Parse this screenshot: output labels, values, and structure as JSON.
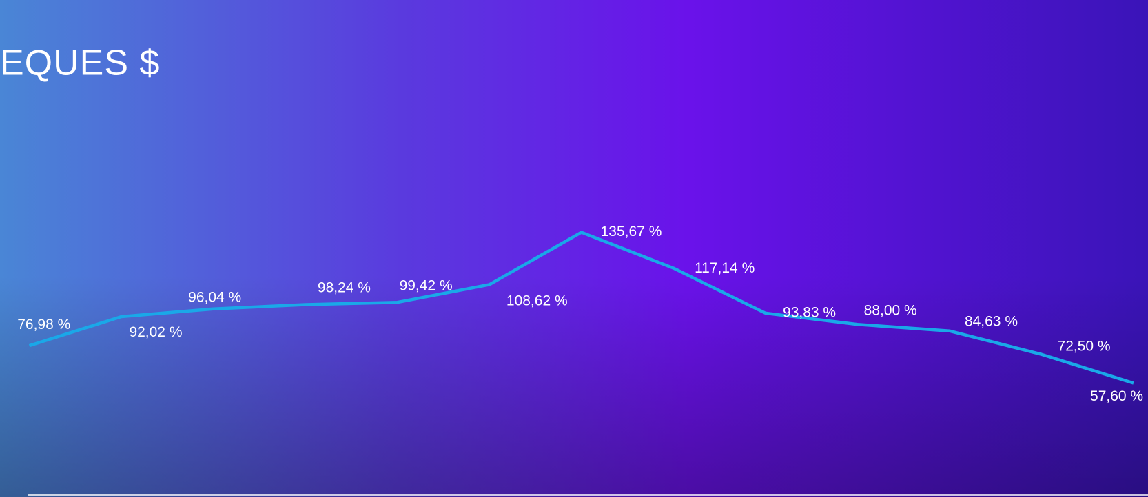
{
  "chart_data": {
    "type": "line",
    "title": "EQUES $",
    "categories": [
      null,
      null,
      null,
      null,
      null,
      null,
      null,
      null,
      null,
      null,
      null,
      null,
      null
    ],
    "series": [
      {
        "color": "#1aa8e8",
        "values": [
          76.98,
          92.02,
          96.04,
          98.24,
          99.42,
          108.62,
          135.67,
          117.14,
          93.83,
          88.0,
          84.63,
          72.5,
          57.6
        ],
        "value_labels": [
          "76,98 %",
          "92,02 %",
          "96,04 %",
          "98,24 %",
          "99,42 %",
          "108,62 %",
          "135,67 %",
          "117,14 %",
          "93,83 %",
          "88,00 %",
          "84,63 %",
          "72,50 %",
          "57,60 %"
        ]
      }
    ],
    "ylim": [
      0,
      250
    ]
  }
}
